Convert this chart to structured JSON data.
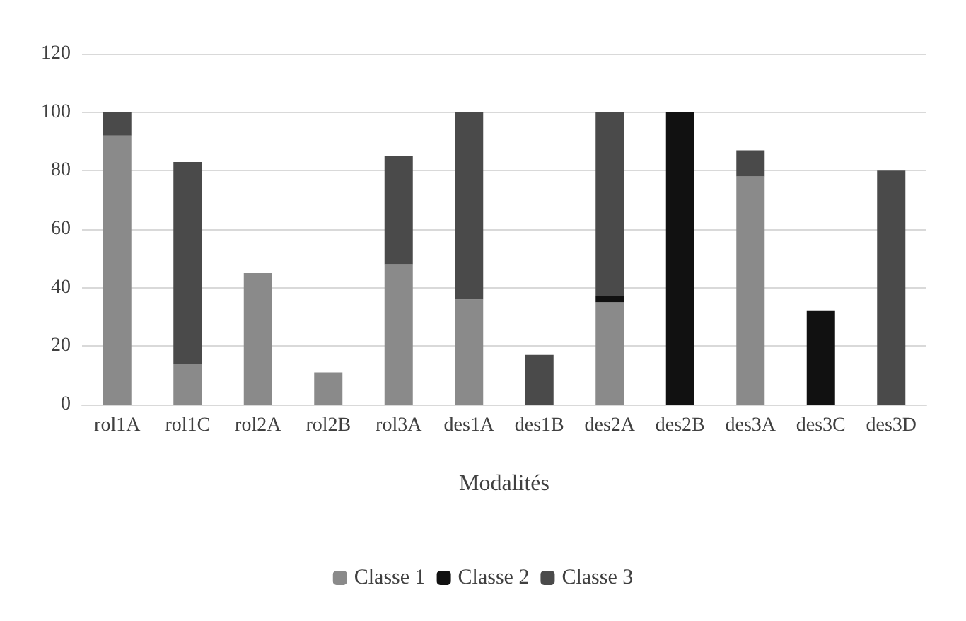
{
  "chart_data": {
    "type": "bar",
    "stacked": true,
    "xlabel": "Modalités",
    "categories": [
      "rol1A",
      "rol1C",
      "rol2A",
      "rol2B",
      "rol3A",
      "des1A",
      "des1B",
      "des2A",
      "des2B",
      "des3A",
      "des3C",
      "des3D"
    ],
    "series": [
      {
        "name": "Classe 1",
        "color": "#8a8a8a",
        "values": [
          92,
          14,
          45,
          11,
          48,
          36,
          null,
          35,
          null,
          78,
          null,
          null
        ]
      },
      {
        "name": "Classe 2",
        "color": "#111111",
        "values": [
          null,
          null,
          null,
          null,
          null,
          null,
          null,
          2,
          100,
          null,
          32,
          null
        ]
      },
      {
        "name": "Classe 3",
        "color": "#4a4a4a",
        "values": [
          8,
          69,
          null,
          null,
          37,
          64,
          17,
          63,
          null,
          9,
          null,
          80
        ]
      }
    ],
    "ylim": [
      0,
      120
    ],
    "yticks": [
      0,
      20,
      40,
      60,
      80,
      100,
      120
    ],
    "grid": "y",
    "legend": "bottom"
  }
}
